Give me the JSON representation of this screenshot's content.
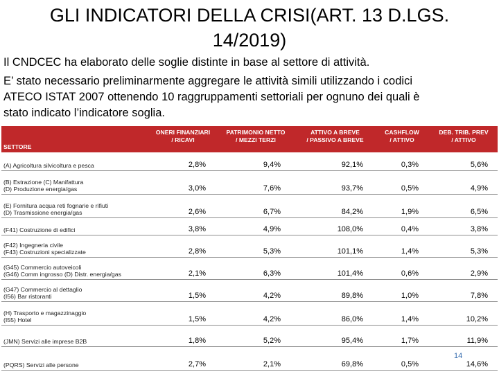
{
  "title": "GLI INDICATORI DELLA CRISI(ART. 13 D.LGS. 14/2019)",
  "paragraph1": "Il CNDCEC ha elaborato delle soglie distinte in base al settore di attività.",
  "paragraph2_lines": [
    "E’ stato necessario preliminarmente aggregare le attività simili utilizzando i codici",
    "ATECO ISTAT 2007 ottenendo 10 raggruppamenti settoriali per ognuno dei quali è",
    "stato indicato l’indicatore soglia."
  ],
  "table": {
    "header_color": "#c0282a",
    "headers": {
      "sector": "SETTORE",
      "col1": [
        "ONERI FINANZIARI",
        "/ RICAVI"
      ],
      "col2": [
        "PATRIMONIO NETTO",
        "/ MEZZI TERZI"
      ],
      "col3": [
        "ATTIVO A BREVE",
        "/ PASSIVO A BREVE"
      ],
      "col4": [
        "CASHFLOW",
        "/ ATTIVO"
      ],
      "col5": [
        "DEB. TRIB. PREV",
        "/ ATTIVO"
      ]
    },
    "rows": [
      {
        "sector": [
          "(A) Agricoltura silvicoltura e pesca"
        ],
        "v": [
          "2,8%",
          "9,4%",
          "92,1%",
          "0,3%",
          "5,6%"
        ]
      },
      {
        "sector": [
          "(B) Estrazione (C) Manifattura",
          "(D) Produzione energia/gas"
        ],
        "v": [
          "3,0%",
          "7,6%",
          "93,7%",
          "0,5%",
          "4,9%"
        ]
      },
      {
        "sector": [
          "(E) Fornitura acqua reti fognarie e rifiuti",
          "(D) Trasmissione energia/gas"
        ],
        "v": [
          "2,6%",
          "6,7%",
          "84,2%",
          "1,9%",
          "6,5%"
        ]
      },
      {
        "sector": [
          "(F41) Costruzione di edifici"
        ],
        "v": [
          "3,8%",
          "4,9%",
          "108,0%",
          "0,4%",
          "3,8%"
        ]
      },
      {
        "sector": [
          "(F42) Ingegneria civile",
          "(F43) Costruzioni specializzate"
        ],
        "v": [
          "2,8%",
          "5,3%",
          "101,1%",
          "1,4%",
          "5,3%"
        ]
      },
      {
        "sector": [
          "(G45) Commercio autoveicoli",
          "(G46) Comm ingrosso (D) Distr. energia/gas"
        ],
        "v": [
          "2,1%",
          "6,3%",
          "101,4%",
          "0,6%",
          "2,9%"
        ]
      },
      {
        "sector": [
          "(G47) Commercio al dettaglio",
          "(I56) Bar ristoranti"
        ],
        "v": [
          "1,5%",
          "4,2%",
          "89,8%",
          "1,0%",
          "7,8%"
        ]
      },
      {
        "sector": [
          "(H) Trasporto e magazzinaggio",
          "(I55) Hotel"
        ],
        "v": [
          "1,5%",
          "4,2%",
          "86,0%",
          "1,4%",
          "10,2%"
        ]
      },
      {
        "sector": [
          "(JMN) Servizi alle imprese B2B"
        ],
        "v": [
          "1,8%",
          "5,2%",
          "95,4%",
          "1,7%",
          "11,9%"
        ]
      },
      {
        "sector": [
          "(PQRS) Servizi alle persone"
        ],
        "v": [
          "2,7%",
          "2,1%",
          "69,8%",
          "0,5%",
          "14,6%"
        ]
      }
    ]
  },
  "page_number": "14"
}
